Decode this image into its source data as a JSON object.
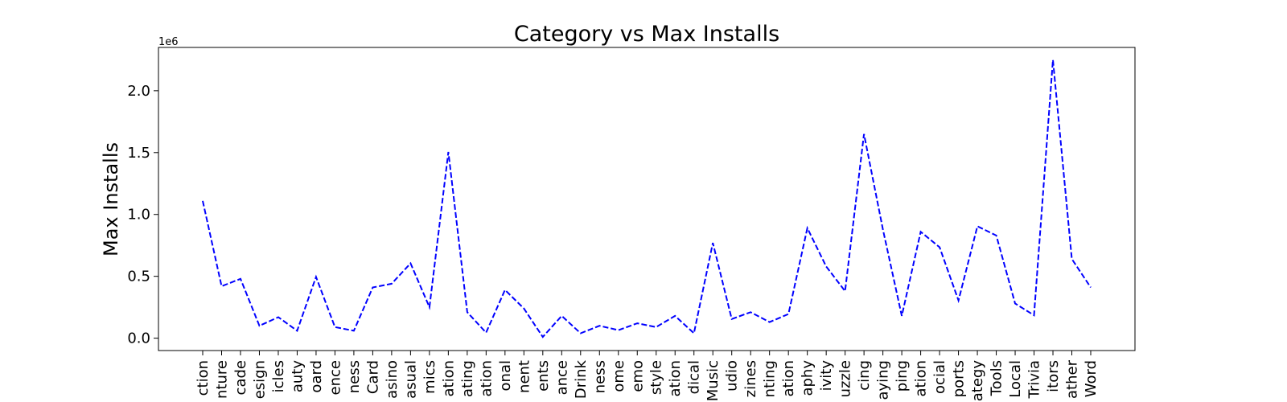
{
  "chart_data": {
    "type": "line",
    "title": "Category vs Max Installs",
    "xlabel": "",
    "ylabel": "Max Installs",
    "y_offset_label": "1e6",
    "ylim": [
      -100000,
      2350000
    ],
    "yticks": [
      0,
      500000,
      1000000,
      1500000,
      2000000
    ],
    "ytick_labels": [
      "0.0",
      "0.5",
      "1.0",
      "1.5",
      "2.0"
    ],
    "grid": false,
    "line_style": "dashed",
    "line_color": "#0000ff",
    "categories": [
      "ction",
      "nture",
      "cade",
      "esign",
      "icles",
      "auty",
      "oard",
      "ence",
      "ness",
      "Card",
      "asino",
      "asual",
      "mics",
      "ation",
      "ating",
      "ation",
      "onal",
      "nent",
      "ents",
      "ance",
      "Drink",
      "ness",
      "ome",
      "emo",
      "style",
      "ation",
      "dical",
      "Music",
      "udio",
      "zines",
      "nting",
      "ation",
      "aphy",
      "ivity",
      "uzzle",
      "cing",
      "aying",
      "ping",
      "ation",
      "ocial",
      "ports",
      "ategy",
      "Tools",
      "Local",
      "Trivia",
      "itors",
      "ather",
      "Word"
    ],
    "series": [
      {
        "values": [
          1110000,
          420000,
          480000,
          100000,
          170000,
          60000,
          495000,
          90000,
          60000,
          410000,
          440000,
          605000,
          250000,
          1505000,
          210000,
          45000,
          390000,
          240000,
          10000,
          180000,
          40000,
          100000,
          65000,
          120000,
          90000,
          180000,
          40000,
          770000,
          155000,
          210000,
          130000,
          195000,
          890000,
          580000,
          380000,
          1650000,
          880000,
          180000,
          860000,
          735000,
          305000,
          905000,
          830000,
          280000,
          185000,
          2250000,
          640000,
          410000
        ]
      }
    ]
  }
}
